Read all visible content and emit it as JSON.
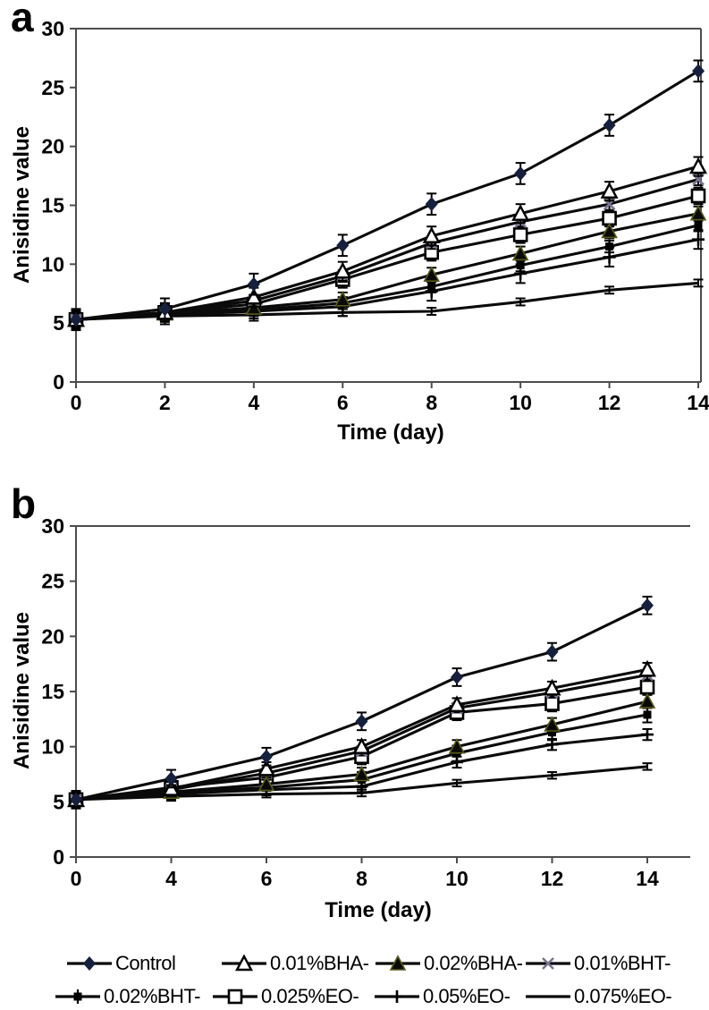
{
  "figure": {
    "panel_a_label": "a",
    "panel_b_label": "b"
  },
  "chart_data": [
    {
      "id": "a",
      "type": "line",
      "title": "",
      "xlabel": "Time (day)",
      "ylabel": "Anisidine value",
      "x": [
        0,
        2,
        4,
        6,
        8,
        10,
        12,
        14
      ],
      "ylim": [
        0,
        30
      ],
      "yticks": [
        0,
        5,
        10,
        15,
        20,
        25,
        30
      ],
      "grid": false,
      "error_bars": true,
      "series": [
        {
          "name": "Control",
          "marker": "filled-diamond",
          "err": 0.9,
          "values": [
            5.3,
            6.2,
            8.3,
            11.6,
            15.1,
            17.7,
            21.8,
            26.4
          ]
        },
        {
          "name": "0.01%BHA-",
          "marker": "open-triangle",
          "err": 0.8,
          "values": [
            5.3,
            5.9,
            7.2,
            9.4,
            12.4,
            14.3,
            16.2,
            18.3
          ]
        },
        {
          "name": "0.02%BHA-",
          "marker": "filled-triangle",
          "err": 0.6,
          "values": [
            5.3,
            5.8,
            6.3,
            7.0,
            9.1,
            10.9,
            12.8,
            14.3
          ]
        },
        {
          "name": "0.01%BHT-",
          "marker": "x-cross",
          "err": 0.5,
          "values": [
            5.3,
            5.9,
            6.9,
            9.0,
            11.8,
            13.6,
            15.1,
            17.2
          ]
        },
        {
          "name": "0.02%BHT-",
          "marker": "asterisk",
          "err": 0.5,
          "values": [
            5.3,
            5.7,
            6.1,
            6.7,
            8.1,
            9.9,
            11.5,
            13.3
          ]
        },
        {
          "name": "0.025%EO-",
          "marker": "open-square",
          "err": 0.7,
          "values": [
            5.3,
            5.9,
            6.6,
            8.7,
            11.0,
            12.5,
            13.9,
            15.8
          ]
        },
        {
          "name": "0.05%EO-",
          "marker": "plus",
          "err": 0.8,
          "values": [
            5.3,
            5.7,
            6.0,
            6.4,
            7.7,
            9.2,
            10.6,
            12.1
          ]
        },
        {
          "name": "0.075%EO-",
          "marker": "none",
          "err": 0.3,
          "values": [
            5.3,
            5.6,
            5.7,
            5.9,
            6.0,
            6.8,
            7.8,
            8.4
          ]
        }
      ]
    },
    {
      "id": "b",
      "type": "line",
      "title": "",
      "xlabel": "Time (day)",
      "ylabel": "Anisidine value",
      "x": [
        0,
        4,
        6,
        8,
        10,
        12,
        14
      ],
      "ylim": [
        0,
        30
      ],
      "yticks": [
        0,
        5,
        10,
        15,
        20,
        25,
        30
      ],
      "grid": false,
      "error_bars": true,
      "series": [
        {
          "name": "Control",
          "marker": "filled-diamond",
          "err": 0.8,
          "values": [
            5.2,
            7.1,
            9.1,
            12.3,
            16.3,
            18.6,
            22.8
          ]
        },
        {
          "name": "0.01%BHA-",
          "marker": "open-triangle",
          "err": 0.6,
          "values": [
            5.2,
            6.2,
            8.0,
            10.0,
            13.8,
            15.3,
            17.0
          ]
        },
        {
          "name": "0.02%BHA-",
          "marker": "filled-triangle",
          "err": 0.6,
          "values": [
            5.2,
            5.9,
            6.6,
            7.5,
            10.0,
            12.0,
            14.1
          ]
        },
        {
          "name": "0.01%BHT-",
          "marker": "x-cross",
          "err": 0.4,
          "values": [
            5.2,
            6.1,
            7.6,
            9.6,
            13.5,
            14.9,
            16.5
          ]
        },
        {
          "name": "0.02%BHT-",
          "marker": "asterisk",
          "err": 0.7,
          "values": [
            5.2,
            5.8,
            6.3,
            7.0,
            9.4,
            11.3,
            12.9
          ]
        },
        {
          "name": "0.025%EO-",
          "marker": "open-square",
          "err": 0.7,
          "values": [
            5.2,
            6.3,
            7.2,
            9.1,
            13.1,
            13.9,
            15.4
          ]
        },
        {
          "name": "0.05%EO-",
          "marker": "plus",
          "err": 0.5,
          "values": [
            5.2,
            5.7,
            6.1,
            6.4,
            8.6,
            10.2,
            11.1
          ]
        },
        {
          "name": "0.075%EO-",
          "marker": "none",
          "err": 0.3,
          "values": [
            5.2,
            5.5,
            5.7,
            5.8,
            6.7,
            7.4,
            8.2
          ]
        }
      ]
    }
  ],
  "legend": {
    "items": [
      {
        "label": "Control",
        "marker": "filled-diamond"
      },
      {
        "label": "0.01%BHA-",
        "marker": "open-triangle"
      },
      {
        "label": "0.02%BHA-",
        "marker": "filled-triangle"
      },
      {
        "label": "0.01%BHT-",
        "marker": "x-cross"
      },
      {
        "label": "0.02%BHT-",
        "marker": "asterisk"
      },
      {
        "label": "0.025%EO-",
        "marker": "open-square"
      },
      {
        "label": "0.05%EO-",
        "marker": "plus"
      },
      {
        "label": "0.075%EO-",
        "marker": "none"
      }
    ]
  },
  "colors": {
    "line": "#0a0a0a",
    "axis": "#4d4d4d",
    "diamond_fill": "#15203c",
    "x_cross": "#7b7492",
    "triangle_edge": "#585a16",
    "text": "#000000"
  }
}
